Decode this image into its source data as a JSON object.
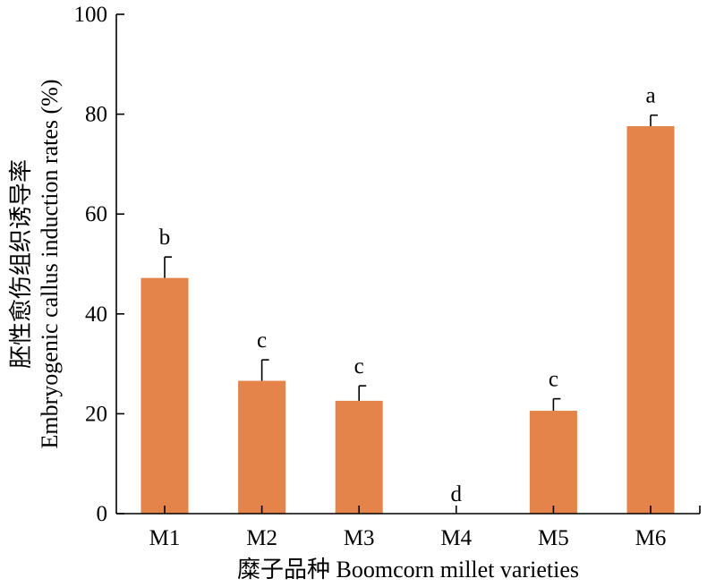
{
  "chart_data": {
    "type": "bar",
    "categories": [
      "M1",
      "M2",
      "M3",
      "M4",
      "M5",
      "M6"
    ],
    "values": [
      47.2,
      26.6,
      22.6,
      0,
      20.6,
      77.6
    ],
    "errors": [
      4.2,
      4.2,
      3.0,
      0,
      2.4,
      2.2
    ],
    "significance": [
      "b",
      "c",
      "c",
      "d",
      "c",
      "a"
    ],
    "ylim": [
      0,
      100
    ],
    "yticks": [
      0,
      20,
      40,
      60,
      80,
      100
    ],
    "ylabel_cn": "胚性愈伤组织诱导率",
    "ylabel_en": "Embryogenic callus induction rates (%)",
    "xlabel": "糜子品种  Boomcorn millet varieties",
    "bar_color": "#E4834A"
  }
}
